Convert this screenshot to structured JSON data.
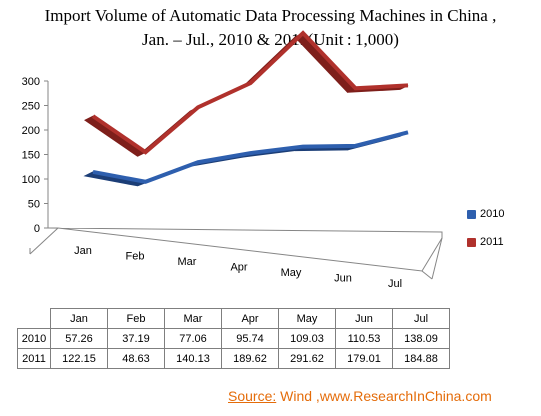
{
  "title_line1": "Import Volume of Automatic Data Processing Machines in China ,",
  "title_line2": "Jan. – Jul., 2010 & 2011(Unit : 1,000)",
  "colors": {
    "series_2010": "#2e5fae",
    "series_2011": "#b0312c"
  },
  "source_label": "Source:",
  "source_text": "Wind ,www.ResearchInChina.com",
  "chart_data": {
    "type": "line",
    "title": "Import Volume of Automatic Data Processing Machines in China , Jan. – Jul., 2010 & 2011(Unit : 1,000)",
    "categories": [
      "Jan",
      "Feb",
      "Mar",
      "Apr",
      "May",
      "Jun",
      "Jul"
    ],
    "y_ticks": [
      "0",
      "50",
      "100",
      "150",
      "200",
      "250",
      "300"
    ],
    "ylim": [
      0,
      300
    ],
    "grid": false,
    "legend_placement": "right",
    "series": [
      {
        "name": "2010",
        "values_text": [
          "57.26",
          "37.19",
          "77.06",
          "95.74",
          "109.03",
          "110.53",
          "138.09"
        ],
        "values": [
          57.26,
          37.19,
          77.06,
          95.74,
          109.03,
          110.53,
          138.09
        ]
      },
      {
        "name": "2011",
        "values_text": [
          "122.15",
          "48.63",
          "140.13",
          "189.62",
          "291.62",
          "179.01",
          "184.88"
        ],
        "values": [
          122.15,
          48.63,
          140.13,
          189.62,
          291.62,
          179.01,
          184.88
        ]
      }
    ]
  }
}
